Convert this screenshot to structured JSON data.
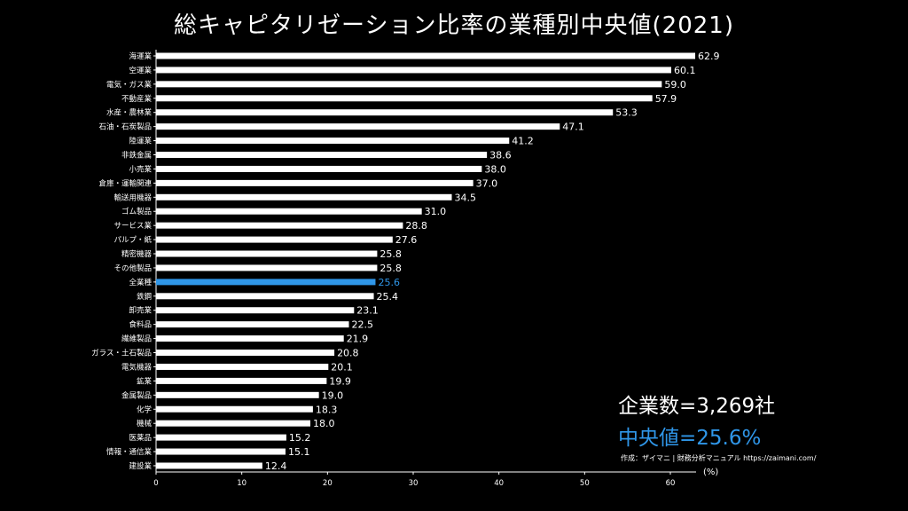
{
  "chart_data": {
    "type": "bar",
    "orientation": "horizontal",
    "title": "総キャピタリゼーション比率の業種別中央値(2021)",
    "xlabel": "(%)",
    "xlim": [
      0,
      63
    ],
    "xticks": [
      0,
      10,
      20,
      30,
      40,
      50,
      60
    ],
    "highlight_category": "全業種",
    "categories": [
      "海運業",
      "空運業",
      "電気・ガス業",
      "不動産業",
      "水産・農林業",
      "石油・石炭製品",
      "陸運業",
      "非鉄金属",
      "小売業",
      "倉庫・運輸関連",
      "輸送用機器",
      "ゴム製品",
      "サービス業",
      "パルプ・紙",
      "精密機器",
      "その他製品",
      "全業種",
      "鉄鋼",
      "卸売業",
      "食料品",
      "繊維製品",
      "ガラス・土石製品",
      "電気機器",
      "鉱業",
      "金属製品",
      "化学",
      "機械",
      "医薬品",
      "情報・通信業",
      "建設業"
    ],
    "values": [
      62.9,
      60.1,
      59.0,
      57.9,
      53.3,
      47.1,
      41.2,
      38.6,
      38.0,
      37.0,
      34.5,
      31.0,
      28.8,
      27.6,
      25.8,
      25.8,
      25.6,
      25.4,
      23.1,
      22.5,
      21.9,
      20.8,
      20.1,
      19.9,
      19.0,
      18.3,
      18.0,
      15.2,
      15.1,
      12.4
    ],
    "value_labels": [
      "62.9",
      "60.1",
      "59.0",
      "57.9",
      "53.3",
      "47.1",
      "41.2",
      "38.6",
      "38.0",
      "37.0",
      "34.5",
      "31.0",
      "28.8",
      "27.6",
      "25.8",
      "25.8",
      "25.6",
      "25.4",
      "23.1",
      "22.5",
      "21.9",
      "20.8",
      "20.1",
      "19.9",
      "19.0",
      "18.3",
      "18.0",
      "15.2",
      "15.1",
      "12.4"
    ],
    "grid": false
  },
  "info": {
    "company_count": "企業数=3,269社",
    "median": "中央値=25.6%",
    "credit": "作成：ザイマニ | 財務分析マニュアル https://zaimani.com/"
  },
  "colors": {
    "background": "#000000",
    "bar": "#ffffff",
    "highlight": "#2f96e8",
    "text": "#ffffff"
  }
}
